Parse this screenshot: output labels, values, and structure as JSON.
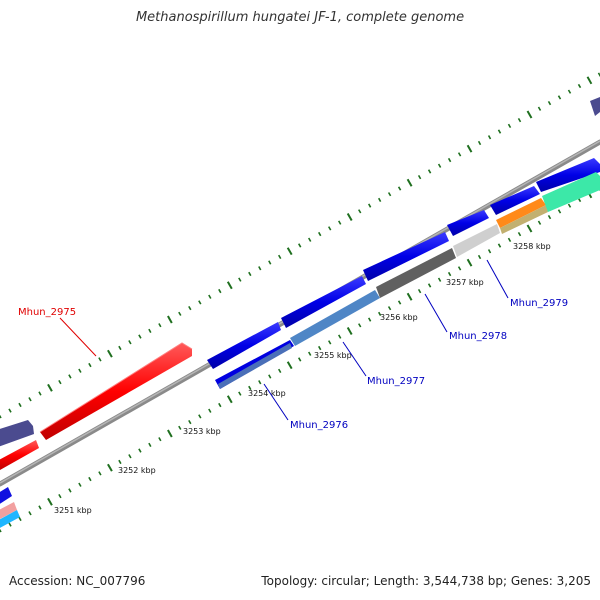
{
  "title": "Methanospirillum hungatei JF-1, complete genome",
  "footer": {
    "accession": "Accession: NC_007796",
    "summary": "Topology: circular; Length: 3,544,738 bp; Genes: 3,205"
  },
  "kbp_labels": [
    "3251 kbp",
    "3252 kbp",
    "3253 kbp",
    "3254 kbp",
    "3255 kbp",
    "3256 kbp",
    "3257 kbp",
    "3258 kbp"
  ],
  "gene_labels": [
    "Mhun_2975",
    "Mhun_2976",
    "Mhun_2977",
    "Mhun_2978",
    "Mhun_2979"
  ],
  "colors": {
    "forward_cds": "#0000e0",
    "highlight_cds": "#ff0000",
    "backbone": "#888888",
    "tick": "#1f6f1f",
    "label_blue": "#0000c0",
    "label_red": "#e00000"
  }
}
